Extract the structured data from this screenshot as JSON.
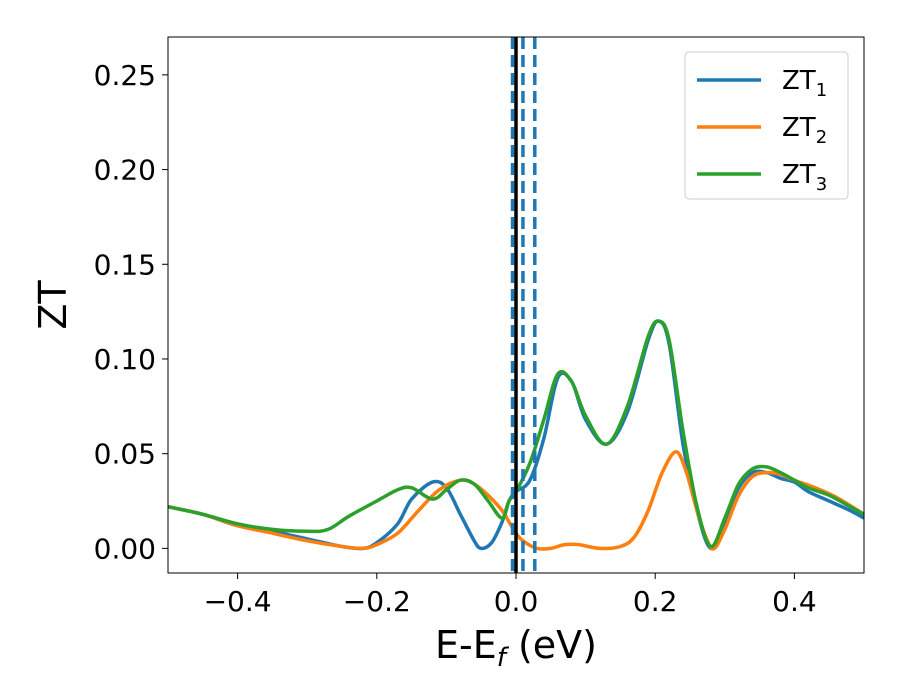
{
  "chart_data": {
    "type": "line",
    "title": "",
    "xlabel": {
      "main": "E-E",
      "sub": "f",
      "suffix": " (eV)"
    },
    "ylabel": "ZT",
    "xlim": [
      -0.5,
      0.5
    ],
    "ylim": [
      -0.013,
      0.27
    ],
    "xticks": [
      -0.4,
      -0.2,
      0.0,
      0.2,
      0.4
    ],
    "xtick_labels": [
      "−0.4",
      "−0.2",
      "0.0",
      "0.2",
      "0.4"
    ],
    "yticks": [
      0.0,
      0.05,
      0.1,
      0.15,
      0.2,
      0.25
    ],
    "ytick_labels": [
      "0.00",
      "0.05",
      "0.10",
      "0.15",
      "0.20",
      "0.25"
    ],
    "grid": false,
    "legend_position": "top-right",
    "vlines": [
      {
        "x": -0.005,
        "style": "dashed",
        "color": "#1f77b4"
      },
      {
        "x": 0.0,
        "style": "solid",
        "color": "#000000"
      },
      {
        "x": 0.01,
        "style": "dashed",
        "color": "#1f77b4"
      },
      {
        "x": 0.027,
        "style": "dashed",
        "color": "#1f77b4"
      }
    ],
    "series": [
      {
        "name": "ZT",
        "sub": "1",
        "color": "#1f77b4",
        "points": [
          [
            -0.5,
            0.022
          ],
          [
            -0.45,
            0.018
          ],
          [
            -0.4,
            0.012
          ],
          [
            -0.35,
            0.009
          ],
          [
            -0.3,
            0.005
          ],
          [
            -0.25,
            0.001
          ],
          [
            -0.22,
            0.0
          ],
          [
            -0.2,
            0.003
          ],
          [
            -0.17,
            0.013
          ],
          [
            -0.15,
            0.026
          ],
          [
            -0.12,
            0.035
          ],
          [
            -0.1,
            0.032
          ],
          [
            -0.08,
            0.018
          ],
          [
            -0.06,
            0.004
          ],
          [
            -0.05,
            0.0
          ],
          [
            -0.035,
            0.003
          ],
          [
            -0.02,
            0.014
          ],
          [
            -0.01,
            0.025
          ],
          [
            0.0,
            0.03
          ],
          [
            0.02,
            0.036
          ],
          [
            0.04,
            0.058
          ],
          [
            0.06,
            0.09
          ],
          [
            0.08,
            0.088
          ],
          [
            0.1,
            0.068
          ],
          [
            0.13,
            0.055
          ],
          [
            0.16,
            0.072
          ],
          [
            0.19,
            0.11
          ],
          [
            0.205,
            0.12
          ],
          [
            0.22,
            0.108
          ],
          [
            0.24,
            0.055
          ],
          [
            0.26,
            0.02
          ],
          [
            0.28,
            0.0
          ],
          [
            0.3,
            0.014
          ],
          [
            0.32,
            0.032
          ],
          [
            0.34,
            0.04
          ],
          [
            0.36,
            0.04
          ],
          [
            0.38,
            0.037
          ],
          [
            0.4,
            0.035
          ],
          [
            0.42,
            0.03
          ],
          [
            0.45,
            0.025
          ],
          [
            0.48,
            0.02
          ],
          [
            0.5,
            0.016
          ]
        ]
      },
      {
        "name": "ZT",
        "sub": "2",
        "color": "#ff7f0e",
        "points": [
          [
            -0.5,
            0.022
          ],
          [
            -0.45,
            0.018
          ],
          [
            -0.4,
            0.012
          ],
          [
            -0.35,
            0.008
          ],
          [
            -0.3,
            0.004
          ],
          [
            -0.25,
            0.001
          ],
          [
            -0.22,
            0.0
          ],
          [
            -0.2,
            0.002
          ],
          [
            -0.17,
            0.008
          ],
          [
            -0.14,
            0.02
          ],
          [
            -0.11,
            0.031
          ],
          [
            -0.08,
            0.036
          ],
          [
            -0.06,
            0.034
          ],
          [
            -0.04,
            0.028
          ],
          [
            -0.02,
            0.02
          ],
          [
            -0.01,
            0.014
          ],
          [
            0.0,
            0.008
          ],
          [
            0.01,
            0.004
          ],
          [
            0.03,
            0.0
          ],
          [
            0.05,
            0.0
          ],
          [
            0.07,
            0.002
          ],
          [
            0.09,
            0.002
          ],
          [
            0.12,
            0.0
          ],
          [
            0.15,
            0.001
          ],
          [
            0.17,
            0.006
          ],
          [
            0.19,
            0.02
          ],
          [
            0.21,
            0.04
          ],
          [
            0.23,
            0.051
          ],
          [
            0.245,
            0.04
          ],
          [
            0.26,
            0.02
          ],
          [
            0.275,
            0.004
          ],
          [
            0.285,
            0.0
          ],
          [
            0.3,
            0.01
          ],
          [
            0.32,
            0.028
          ],
          [
            0.34,
            0.038
          ],
          [
            0.36,
            0.04
          ],
          [
            0.38,
            0.039
          ],
          [
            0.4,
            0.036
          ],
          [
            0.43,
            0.032
          ],
          [
            0.46,
            0.027
          ],
          [
            0.5,
            0.018
          ]
        ]
      },
      {
        "name": "ZT",
        "sub": "3",
        "color": "#2ca02c",
        "points": [
          [
            -0.5,
            0.022
          ],
          [
            -0.45,
            0.018
          ],
          [
            -0.4,
            0.013
          ],
          [
            -0.35,
            0.01
          ],
          [
            -0.3,
            0.009
          ],
          [
            -0.27,
            0.01
          ],
          [
            -0.24,
            0.017
          ],
          [
            -0.2,
            0.025
          ],
          [
            -0.17,
            0.031
          ],
          [
            -0.15,
            0.032
          ],
          [
            -0.12,
            0.026
          ],
          [
            -0.1,
            0.031
          ],
          [
            -0.08,
            0.036
          ],
          [
            -0.06,
            0.034
          ],
          [
            -0.04,
            0.025
          ],
          [
            -0.02,
            0.016
          ],
          [
            -0.01,
            0.025
          ],
          [
            0.0,
            0.03
          ],
          [
            0.02,
            0.045
          ],
          [
            0.04,
            0.068
          ],
          [
            0.06,
            0.092
          ],
          [
            0.08,
            0.088
          ],
          [
            0.1,
            0.07
          ],
          [
            0.13,
            0.055
          ],
          [
            0.16,
            0.075
          ],
          [
            0.19,
            0.112
          ],
          [
            0.205,
            0.12
          ],
          [
            0.22,
            0.11
          ],
          [
            0.24,
            0.062
          ],
          [
            0.26,
            0.022
          ],
          [
            0.28,
            0.001
          ],
          [
            0.3,
            0.016
          ],
          [
            0.32,
            0.034
          ],
          [
            0.34,
            0.042
          ],
          [
            0.36,
            0.043
          ],
          [
            0.38,
            0.04
          ],
          [
            0.4,
            0.036
          ],
          [
            0.42,
            0.032
          ],
          [
            0.45,
            0.028
          ],
          [
            0.48,
            0.022
          ],
          [
            0.5,
            0.018
          ]
        ]
      }
    ]
  }
}
